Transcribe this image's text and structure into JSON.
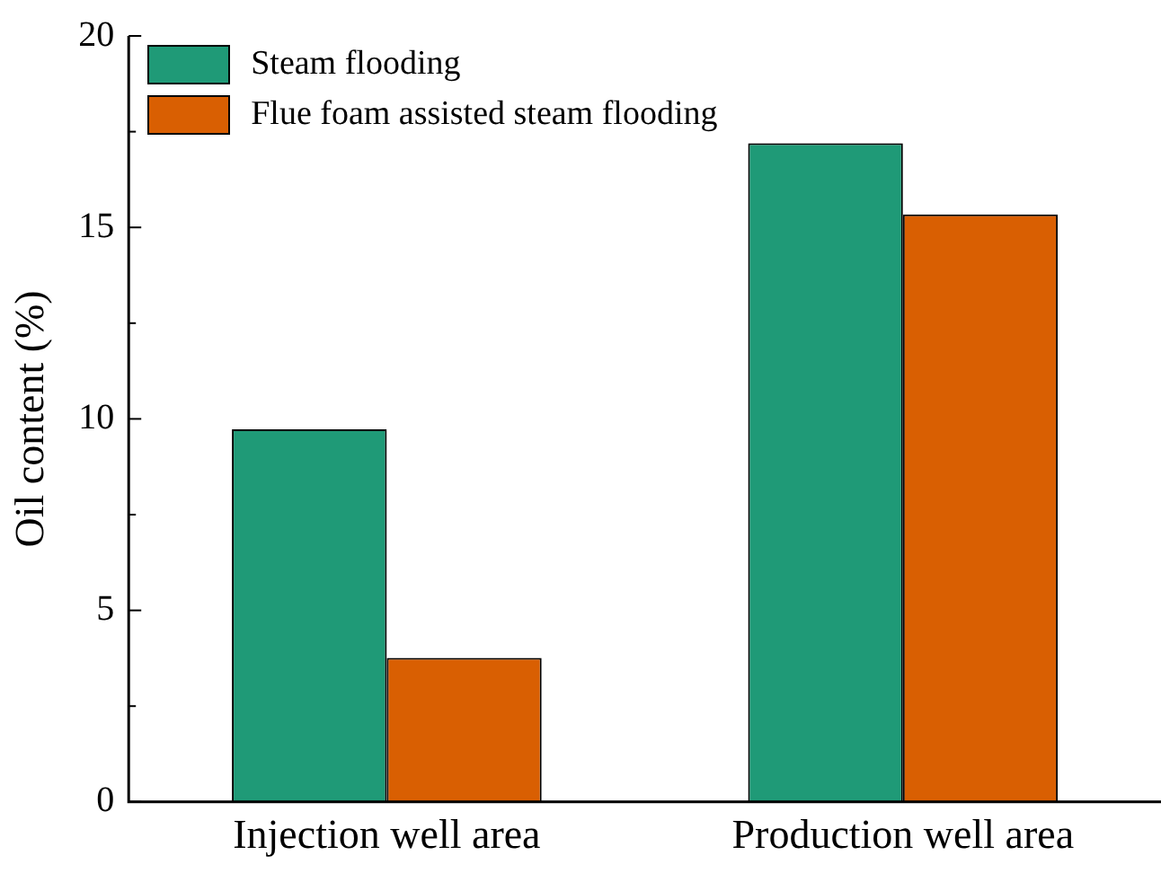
{
  "chart_data": {
    "type": "bar",
    "ylabel": "Oil content (%)",
    "categories": [
      "Injection well area",
      "Production well area"
    ],
    "series": [
      {
        "name": "Steam flooding",
        "color": "#1f9a77",
        "values": [
          9.73,
          17.2
        ]
      },
      {
        "name": "Flue foam assisted steam flooding",
        "color": "#d95f02",
        "values": [
          3.76,
          15.34
        ]
      }
    ],
    "ylim": [
      0,
      20
    ],
    "yticks": [
      0,
      {
        "value": 2.5,
        "label": null
      },
      5,
      {
        "value": 7.5,
        "label": null
      },
      10,
      {
        "value": 12.5,
        "label": null
      },
      15,
      {
        "value": 17.5,
        "label": null
      },
      20
    ],
    "grid": false,
    "legend": "top left"
  }
}
